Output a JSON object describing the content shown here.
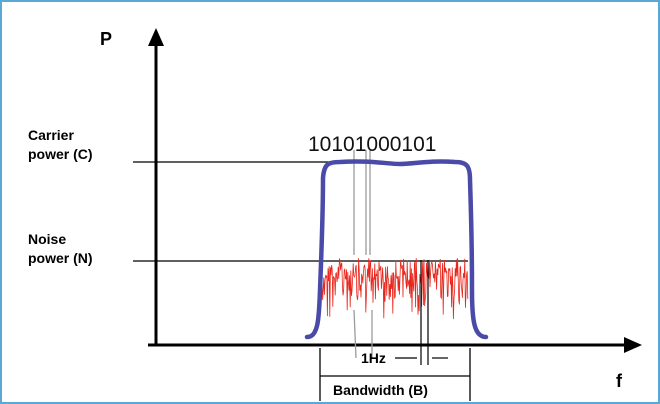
{
  "diagram": {
    "y_axis_label": "P",
    "x_axis_label": "f",
    "carrier_label_line1": "Carrier",
    "carrier_label_line2": "power (C)",
    "noise_label_line1": "Noise",
    "noise_label_line2": "power (N)",
    "bit_string": "10101000101",
    "hz_label": "1Hz",
    "bandwidth_label": "Bandwidth (B)",
    "colors": {
      "frame_border": "#5aa8d6",
      "carrier_curve": "#4a4aa8",
      "noise": "#e8261c",
      "axes": "#000000",
      "guide_lines": "#9a9a9a"
    }
  }
}
